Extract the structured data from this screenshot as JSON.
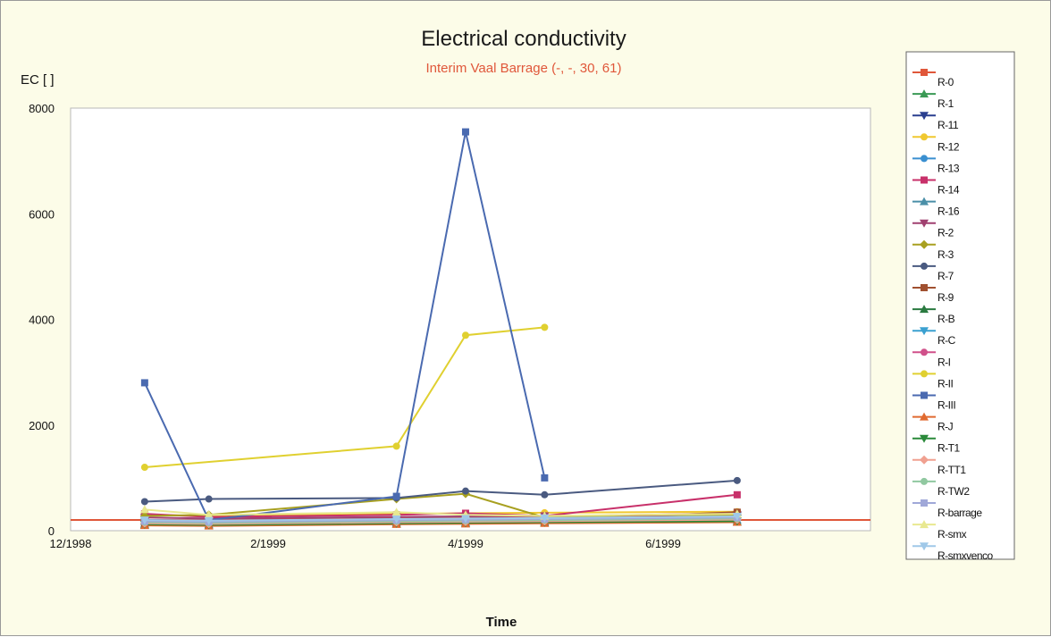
{
  "chart_data": {
    "type": "line",
    "title": "Electrical conductivity",
    "subtitle": "Interim Vaal Barrage (-, -, 30, 61)",
    "ylabel": "EC [ ]",
    "xlabel": "Time",
    "ylim": [
      0,
      8000
    ],
    "yticks": [
      "8000",
      "6000",
      "4000",
      "2000",
      "0"
    ],
    "ytick_values": [
      8000,
      6000,
      4000,
      2000,
      0
    ],
    "xlim": [
      0,
      8.1
    ],
    "xticks": [
      "12/1998",
      "2/1999",
      "4/1999",
      "6/1999"
    ],
    "xtick_values": [
      0,
      2,
      4,
      6
    ],
    "grid": false,
    "legend_position": "right",
    "series": [
      {
        "name": "R-0",
        "color": "#e0573a",
        "marker": "square",
        "x": [
          0.75,
          2.0,
          3.3,
          4.0,
          4.8,
          6.75
        ],
        "y": [
          120,
          230,
          250,
          260,
          270,
          330
        ]
      },
      {
        "name": "R-1",
        "color": "#3a9a55",
        "marker": "triangle-up",
        "x": [
          0.75,
          1.4,
          3.3,
          4.0,
          4.8,
          6.75
        ],
        "y": [
          180,
          170,
          200,
          210,
          220,
          260
        ]
      },
      {
        "name": "R-11",
        "color": "#2a3f8f",
        "marker": "triangle-down",
        "x": [
          0.75,
          1.4,
          3.3,
          4.0,
          4.8,
          6.75
        ],
        "y": [
          200,
          190,
          220,
          230,
          240,
          280
        ]
      },
      {
        "name": "R-12",
        "color": "#f0c830",
        "marker": "circle",
        "x": [
          0.75,
          1.4,
          3.3,
          4.0,
          4.8,
          6.75
        ],
        "y": [
          300,
          280,
          320,
          330,
          340,
          360
        ]
      },
      {
        "name": "R-13",
        "color": "#3a8fd0",
        "marker": "circle",
        "x": [
          0.75,
          1.4,
          3.3,
          4.0,
          4.8,
          6.75
        ],
        "y": [
          150,
          140,
          170,
          180,
          190,
          220
        ]
      },
      {
        "name": "R-14",
        "color": "#c8306a",
        "marker": "square",
        "x": [
          0.75,
          1.4,
          3.3,
          4.0,
          4.8,
          6.75
        ],
        "y": [
          320,
          260,
          300,
          330,
          280,
          680
        ]
      },
      {
        "name": "R-16",
        "color": "#4a8fa8",
        "marker": "triangle-up",
        "x": [
          0.75,
          1.4,
          3.3,
          4.0,
          4.8,
          6.75
        ],
        "y": [
          130,
          120,
          150,
          160,
          170,
          200
        ]
      },
      {
        "name": "R-2",
        "color": "#a04070",
        "marker": "triangle-down",
        "x": [
          0.75,
          1.4,
          3.3,
          4.0,
          4.8,
          6.75
        ],
        "y": [
          250,
          230,
          260,
          270,
          280,
          300
        ]
      },
      {
        "name": "R-3",
        "color": "#a8a020",
        "marker": "diamond",
        "x": [
          0.75,
          1.4,
          3.3,
          4.0,
          4.8,
          6.75
        ],
        "y": [
          280,
          300,
          600,
          700,
          250,
          300
        ]
      },
      {
        "name": "R-7",
        "color": "#4a5a80",
        "marker": "circle",
        "x": [
          0.75,
          1.4,
          3.3,
          4.0,
          4.8,
          6.75
        ],
        "y": [
          550,
          600,
          620,
          750,
          680,
          950
        ]
      },
      {
        "name": "R-9",
        "color": "#a05030",
        "marker": "square",
        "x": [
          0.75,
          1.4,
          3.3,
          4.0,
          4.8,
          6.75
        ],
        "y": [
          140,
          150,
          180,
          190,
          200,
          350
        ]
      },
      {
        "name": "R-B",
        "color": "#2a7a40",
        "marker": "triangle-up",
        "x": [
          0.75,
          1.4,
          3.3,
          4.0,
          4.8,
          6.75
        ],
        "y": [
          110,
          100,
          130,
          140,
          150,
          170
        ]
      },
      {
        "name": "R-C",
        "color": "#3aa0d0",
        "marker": "triangle-down",
        "x": [
          0.75,
          1.4,
          3.3,
          4.0,
          4.8,
          6.75
        ],
        "y": [
          160,
          150,
          180,
          190,
          200,
          230
        ]
      },
      {
        "name": "R-I",
        "color": "#d0508a",
        "marker": "circle",
        "x": [
          0.75,
          1.4,
          3.3,
          4.0,
          4.8,
          6.75
        ],
        "y": [
          170,
          160,
          190,
          200,
          210,
          240
        ]
      },
      {
        "name": "R-II",
        "color": "#e0d030",
        "marker": "circle",
        "x": [
          0.75,
          3.3,
          4.0,
          4.8
        ],
        "y": [
          1200,
          1600,
          3700,
          3850
        ]
      },
      {
        "name": "R-III",
        "color": "#4a6ab0",
        "marker": "square",
        "x": [
          0.75,
          1.4,
          3.3,
          4.0,
          4.8
        ],
        "y": [
          2800,
          200,
          650,
          7550,
          1000
        ]
      },
      {
        "name": "R-J",
        "color": "#e06a30",
        "marker": "triangle-up",
        "x": [
          0.75,
          1.4,
          3.3,
          4.0,
          4.8,
          6.75
        ],
        "y": [
          100,
          90,
          120,
          130,
          140,
          160
        ]
      },
      {
        "name": "R-T1",
        "color": "#2a8a3a",
        "marker": "triangle-down",
        "x": [
          0.75,
          1.4,
          3.3,
          4.0,
          4.8,
          6.75
        ],
        "y": [
          120,
          110,
          140,
          150,
          160,
          180
        ]
      },
      {
        "name": "R-TT1",
        "color": "#f0a090",
        "marker": "diamond",
        "x": [
          0.75,
          1.4,
          3.3,
          4.0,
          4.8,
          6.75
        ],
        "y": [
          140,
          130,
          160,
          170,
          180,
          210
        ]
      },
      {
        "name": "R-TW2",
        "color": "#90c8a0",
        "marker": "circle",
        "x": [
          0.75,
          1.4,
          3.3,
          4.0,
          4.8,
          6.75
        ],
        "y": [
          160,
          150,
          180,
          190,
          200,
          230
        ]
      },
      {
        "name": "R-barrage",
        "color": "#a0a8d8",
        "marker": "square",
        "x": [
          0.75,
          1.4,
          3.3,
          4.0,
          4.8,
          6.75
        ],
        "y": [
          180,
          170,
          200,
          210,
          220,
          250
        ]
      },
      {
        "name": "R-smx",
        "color": "#e8e890",
        "marker": "triangle-up",
        "x": [
          0.75,
          1.4,
          3.3,
          4.0,
          4.8,
          6.75
        ],
        "y": [
          400,
          300,
          350,
          300,
          280,
          320
        ]
      },
      {
        "name": "R-smxvenco",
        "color": "#a0c8e8",
        "marker": "triangle-down",
        "x": [
          0.75,
          1.4,
          3.3,
          4.0,
          4.8,
          6.75
        ],
        "y": [
          200,
          190,
          220,
          230,
          240,
          270
        ]
      }
    ]
  }
}
